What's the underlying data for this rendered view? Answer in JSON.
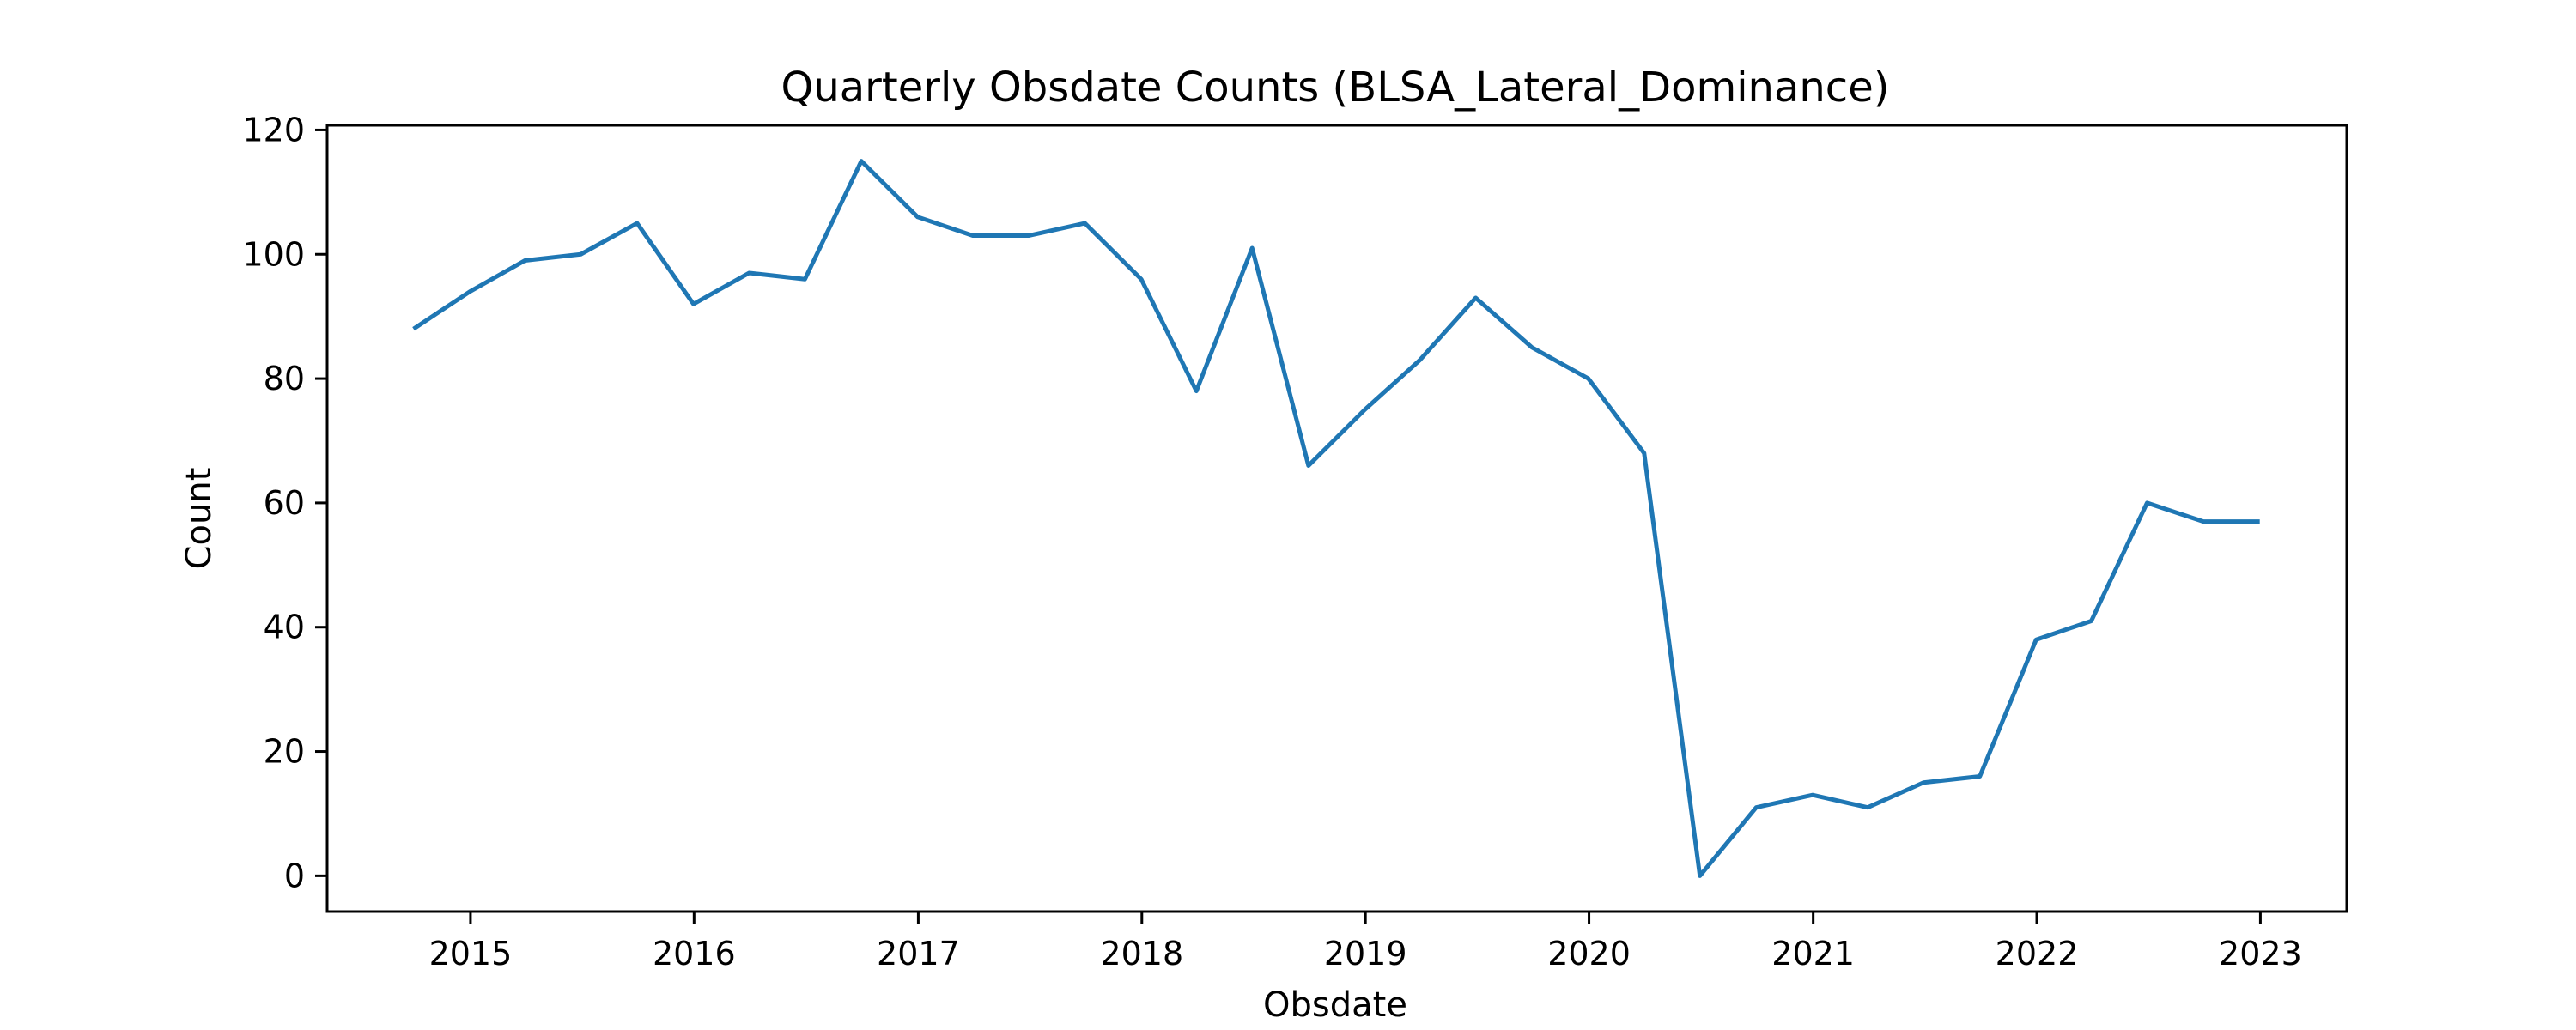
{
  "chart_data": {
    "type": "line",
    "title": "Quarterly Obsdate Counts (BLSA_Lateral_Dominance)",
    "xlabel": "Obsdate",
    "ylabel": "Count",
    "x_ticks": [
      "2015",
      "2016",
      "2017",
      "2018",
      "2019",
      "2020",
      "2021",
      "2022",
      "2023"
    ],
    "y_ticks": [
      0,
      20,
      40,
      60,
      80,
      100,
      120
    ],
    "ylim": [
      -5.75,
      120.75
    ],
    "xlim": [
      "2014-05-12",
      "2023-05-22"
    ],
    "grid": false,
    "series": [
      {
        "color": "#1f77b4",
        "x": [
          "2014-09-30",
          "2014-12-31",
          "2015-03-31",
          "2015-06-30",
          "2015-09-30",
          "2015-12-31",
          "2016-03-31",
          "2016-06-30",
          "2016-09-30",
          "2016-12-31",
          "2017-03-31",
          "2017-06-30",
          "2017-09-30",
          "2017-12-31",
          "2018-03-31",
          "2018-06-30",
          "2018-09-30",
          "2018-12-31",
          "2019-03-31",
          "2019-06-30",
          "2019-09-30",
          "2019-12-31",
          "2020-03-31",
          "2020-06-30",
          "2020-09-30",
          "2020-12-31",
          "2021-03-31",
          "2021-06-30",
          "2021-09-30",
          "2021-12-31",
          "2022-03-31",
          "2022-06-30",
          "2022-09-30",
          "2022-12-31"
        ],
        "values": [
          88,
          94,
          99,
          100,
          105,
          92,
          97,
          96,
          115,
          106,
          103,
          103,
          105,
          96,
          78,
          101,
          66,
          75,
          83,
          93,
          85,
          80,
          68,
          0,
          11,
          13,
          11,
          15,
          16,
          38,
          41,
          60,
          57,
          57
        ]
      }
    ]
  }
}
